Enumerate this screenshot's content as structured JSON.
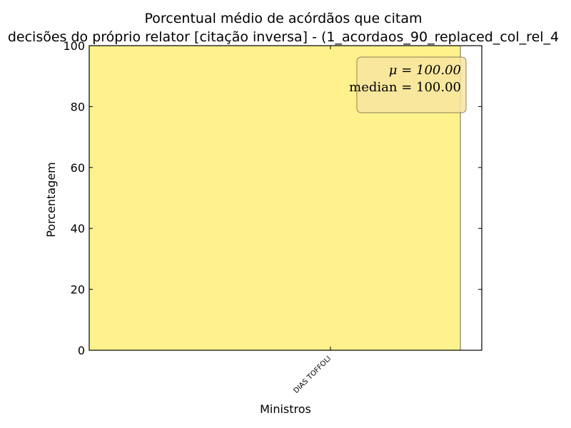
{
  "chart_data": {
    "type": "bar",
    "title_lines": [
      "Porcentual médio de acórdãos que citam",
      "decisões do próprio relator [citação inversa] - (1_acordaos_90_replaced_col_rel_4"
    ],
    "xlabel": "Ministros",
    "ylabel": "Porcentagem",
    "categories": [
      "DIAS TOFFOLI"
    ],
    "values": [
      100
    ],
    "ylim": [
      0,
      100
    ],
    "yticks": [
      0,
      20,
      40,
      60,
      80,
      100
    ],
    "bar_color": "#fff28c",
    "stats_box": {
      "mean_label": "μ = 100.00",
      "median_label": "median = 100.00",
      "background": "#f8e6a0",
      "placement": "top-right"
    },
    "grid": false
  }
}
